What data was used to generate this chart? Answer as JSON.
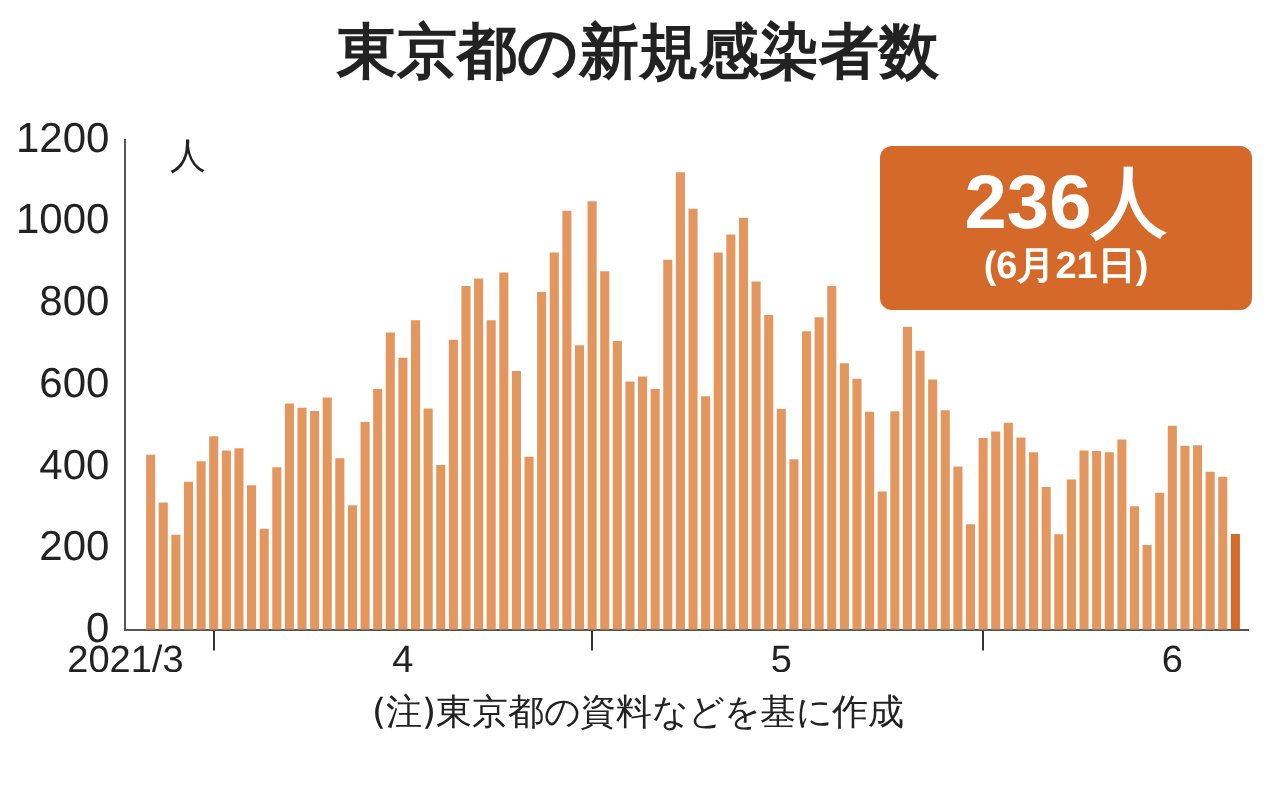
{
  "chart_data": {
    "type": "bar",
    "title": "東京都の新規感染者数",
    "ylabel": "人",
    "x": [
      "2021-03-27",
      "2021-03-28",
      "2021-03-29",
      "2021-03-30",
      "2021-03-31",
      "2021-04-01",
      "2021-04-02",
      "2021-04-03",
      "2021-04-04",
      "2021-04-05",
      "2021-04-06",
      "2021-04-07",
      "2021-04-08",
      "2021-04-09",
      "2021-04-10",
      "2021-04-11",
      "2021-04-12",
      "2021-04-13",
      "2021-04-14",
      "2021-04-15",
      "2021-04-16",
      "2021-04-17",
      "2021-04-18",
      "2021-04-19",
      "2021-04-20",
      "2021-04-21",
      "2021-04-22",
      "2021-04-23",
      "2021-04-24",
      "2021-04-25",
      "2021-04-26",
      "2021-04-27",
      "2021-04-28",
      "2021-04-29",
      "2021-04-30",
      "2021-05-01",
      "2021-05-02",
      "2021-05-03",
      "2021-05-04",
      "2021-05-05",
      "2021-05-06",
      "2021-05-07",
      "2021-05-08",
      "2021-05-09",
      "2021-05-10",
      "2021-05-11",
      "2021-05-12",
      "2021-05-13",
      "2021-05-14",
      "2021-05-15",
      "2021-05-16",
      "2021-05-17",
      "2021-05-18",
      "2021-05-19",
      "2021-05-20",
      "2021-05-21",
      "2021-05-22",
      "2021-05-23",
      "2021-05-24",
      "2021-05-25",
      "2021-05-26",
      "2021-05-27",
      "2021-05-28",
      "2021-05-29",
      "2021-05-30",
      "2021-05-31",
      "2021-06-01",
      "2021-06-02",
      "2021-06-03",
      "2021-06-04",
      "2021-06-05",
      "2021-06-06",
      "2021-06-07",
      "2021-06-08",
      "2021-06-09",
      "2021-06-10",
      "2021-06-11",
      "2021-06-12",
      "2021-06-13",
      "2021-06-14",
      "2021-06-15",
      "2021-06-16",
      "2021-06-17",
      "2021-06-18",
      "2021-06-19",
      "2021-06-20",
      "2021-06-21"
    ],
    "values": [
      430,
      313,
      234,
      364,
      414,
      475,
      440,
      446,
      355,
      249,
      399,
      555,
      545,
      537,
      570,
      421,
      306,
      510,
      591,
      729,
      667,
      759,
      543,
      405,
      711,
      843,
      861,
      759,
      876,
      635,
      425,
      828,
      925,
      1027,
      698,
      1050,
      879,
      708,
      609,
      621,
      591,
      907,
      1121,
      1032,
      573,
      925,
      969,
      1010,
      854,
      772,
      542,
      419,
      732,
      766,
      843,
      654,
      616,
      535,
      340,
      536,
      743,
      684,
      614,
      539,
      401,
      260,
      471,
      487,
      508,
      472,
      436,
      351,
      235,
      369,
      440,
      439,
      436,
      467,
      304,
      209,
      337,
      501,
      452,
      453,
      388,
      376,
      236
    ],
    "colors": [
      "#e3975f",
      "#e3975f",
      "#e3975f",
      "#e3975f",
      "#e3975f",
      "#e3975f",
      "#e3975f",
      "#e3975f",
      "#e3975f",
      "#e3975f",
      "#e3975f",
      "#e3975f",
      "#e3975f",
      "#e3975f",
      "#e3975f",
      "#e3975f",
      "#e3975f",
      "#e3975f",
      "#e3975f",
      "#e3975f",
      "#e3975f",
      "#e3975f",
      "#e3975f",
      "#e3975f",
      "#e3975f",
      "#e3975f",
      "#e3975f",
      "#e3975f",
      "#e3975f",
      "#e3975f",
      "#e3975f",
      "#e3975f",
      "#e3975f",
      "#e3975f",
      "#e3975f",
      "#e3975f",
      "#e3975f",
      "#e3975f",
      "#e3975f",
      "#e3975f",
      "#e3975f",
      "#e3975f",
      "#e3975f",
      "#e3975f",
      "#e3975f",
      "#e3975f",
      "#e3975f",
      "#e3975f",
      "#e3975f",
      "#e3975f",
      "#e3975f",
      "#e3975f",
      "#e3975f",
      "#e3975f",
      "#e3975f",
      "#e3975f",
      "#e3975f",
      "#e3975f",
      "#e3975f",
      "#e3975f",
      "#e3975f",
      "#e3975f",
      "#e3975f",
      "#e3975f",
      "#e3975f",
      "#e3975f",
      "#e3975f",
      "#e3975f",
      "#e3975f",
      "#e3975f",
      "#e3975f",
      "#e3975f",
      "#e3975f",
      "#e3975f",
      "#e3975f",
      "#e3975f",
      "#e3975f",
      "#e3975f",
      "#e3975f",
      "#e3975f",
      "#e3975f",
      "#e3975f",
      "#e3975f",
      "#e3975f",
      "#e3975f",
      "#e3975f",
      "#d4692a"
    ],
    "ylim": [
      0,
      1200
    ],
    "yticks": [
      0,
      200,
      400,
      600,
      800,
      1000,
      1200
    ],
    "xlim": [
      "2021-03-25",
      "2021-06-22"
    ],
    "xticks": [
      {
        "value": "2021-03-25",
        "label": "2021/3"
      },
      {
        "value": "2021-04-01",
        "label": null
      },
      {
        "value": "2021-04-16",
        "label": "4"
      },
      {
        "value": "2021-05-01",
        "label": null
      },
      {
        "value": "2021-05-16",
        "label": "5"
      },
      {
        "value": "2021-06-01",
        "label": null
      },
      {
        "value": "2021-06-16",
        "label": "6"
      }
    ],
    "grid": false,
    "legend": false,
    "annotations": [
      "236人",
      "(6月21日)",
      "(注)東京都の資料などを基に作成"
    ]
  }
}
